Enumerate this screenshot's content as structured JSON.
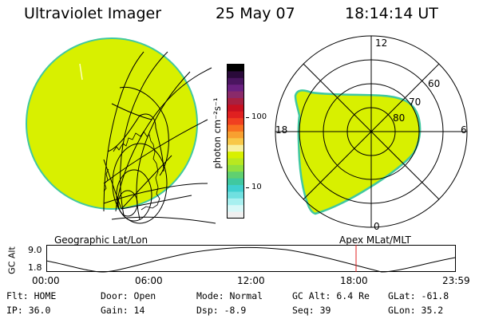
{
  "header": {
    "instrument": "Ultraviolet Imager",
    "date": "25 May 07",
    "time": "18:14:14 UT"
  },
  "colorbar": {
    "unit_label": "photon cm⁻²s⁻¹",
    "ticks": [
      "100",
      "10"
    ],
    "colors": [
      "#000000",
      "#2a0a3a",
      "#4a1560",
      "#6a2080",
      "#8a2a6a",
      "#a82040",
      "#c81020",
      "#e02020",
      "#f04020",
      "#f87020",
      "#f8a030",
      "#f8c848",
      "#f8f0a0",
      "#d8f000",
      "#b8e820",
      "#90e040",
      "#60d070",
      "#40c8a0",
      "#40d0d0",
      "#70e0e0",
      "#a8f0f0",
      "#d8f8f8",
      "#f0f0f0"
    ]
  },
  "polar": {
    "mlt_labels": {
      "top": "12",
      "left": "18",
      "right": "6",
      "bottom": "0"
    },
    "lat_labels": [
      "60",
      "70",
      "80"
    ]
  },
  "geo_label": "Geographic Lat/Lon",
  "apex_label": "Apex MLat/MLT",
  "orbit": {
    "ylabel": "GC Alt",
    "y_ticks": [
      "9.0",
      "1.8"
    ],
    "x_ticks": [
      "00:00",
      "06:00",
      "12:00",
      "18:00",
      "23:59"
    ],
    "current_time_marker": "18:14",
    "marker_color": "#e02020"
  },
  "info": {
    "flt": "Flt: HOME",
    "ip": "IP: 36.0",
    "door": "Door: Open",
    "gain": "Gain: 14",
    "mode": "Mode: Normal",
    "dsp": "Dsp:   -8.9",
    "gcalt": "GC Alt: 6.4 Re",
    "seq": "Seq: 39",
    "glat": "GLat: -61.8",
    "glon": "GLon:  35.2"
  },
  "colors": {
    "aurora": "#d8f000",
    "aurora_edge": "#40c8a0"
  }
}
